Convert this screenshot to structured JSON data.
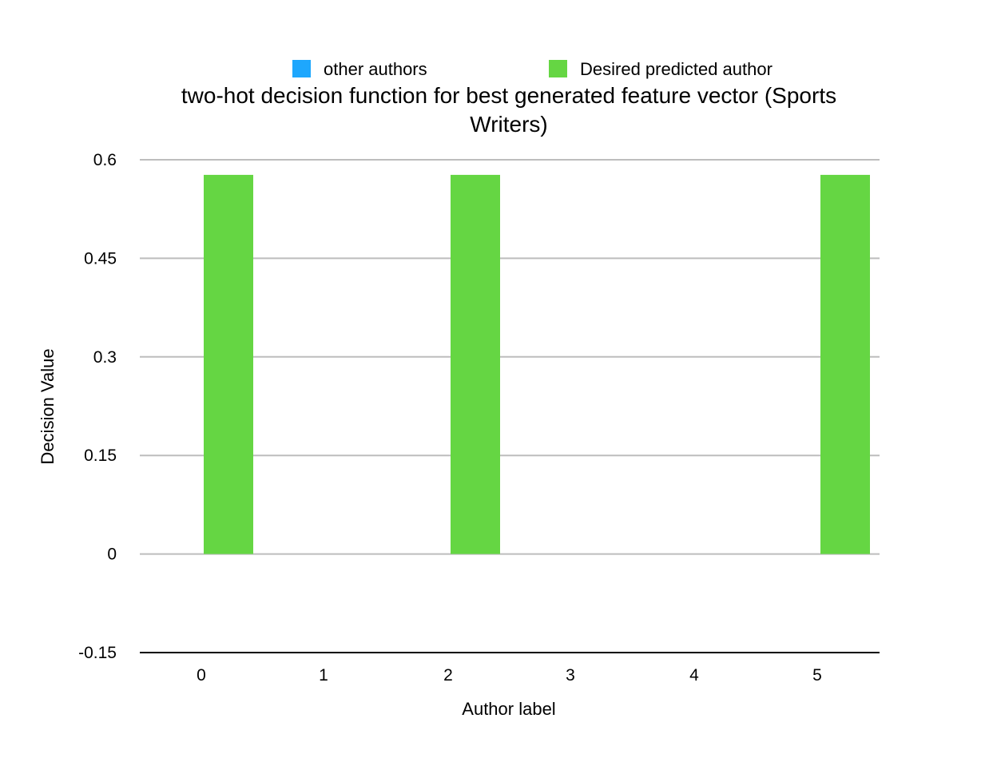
{
  "chart_data": {
    "type": "bar",
    "title_lines": [
      "two-hot decision function for best generated feature vector (Sports",
      "Writers)"
    ],
    "xlabel": "Author label",
    "ylabel": "Decision Value",
    "categories": [
      "0",
      "1",
      "2",
      "3",
      "4",
      "5"
    ],
    "yticks": [
      "0.6",
      "0.45",
      "0.3",
      "0.15",
      "0",
      "-0.15"
    ],
    "ylim": [
      -0.15,
      0.6
    ],
    "grid": true,
    "legend_placement": "top-center",
    "series": [
      {
        "name": "other authors",
        "color": "#1ea7fd",
        "values": [
          0,
          0,
          0,
          0,
          0,
          0
        ]
      },
      {
        "name": "Desired predicted author",
        "color": "#65d643",
        "values": [
          0.577,
          0,
          0.577,
          0,
          0,
          0.577
        ]
      }
    ]
  }
}
